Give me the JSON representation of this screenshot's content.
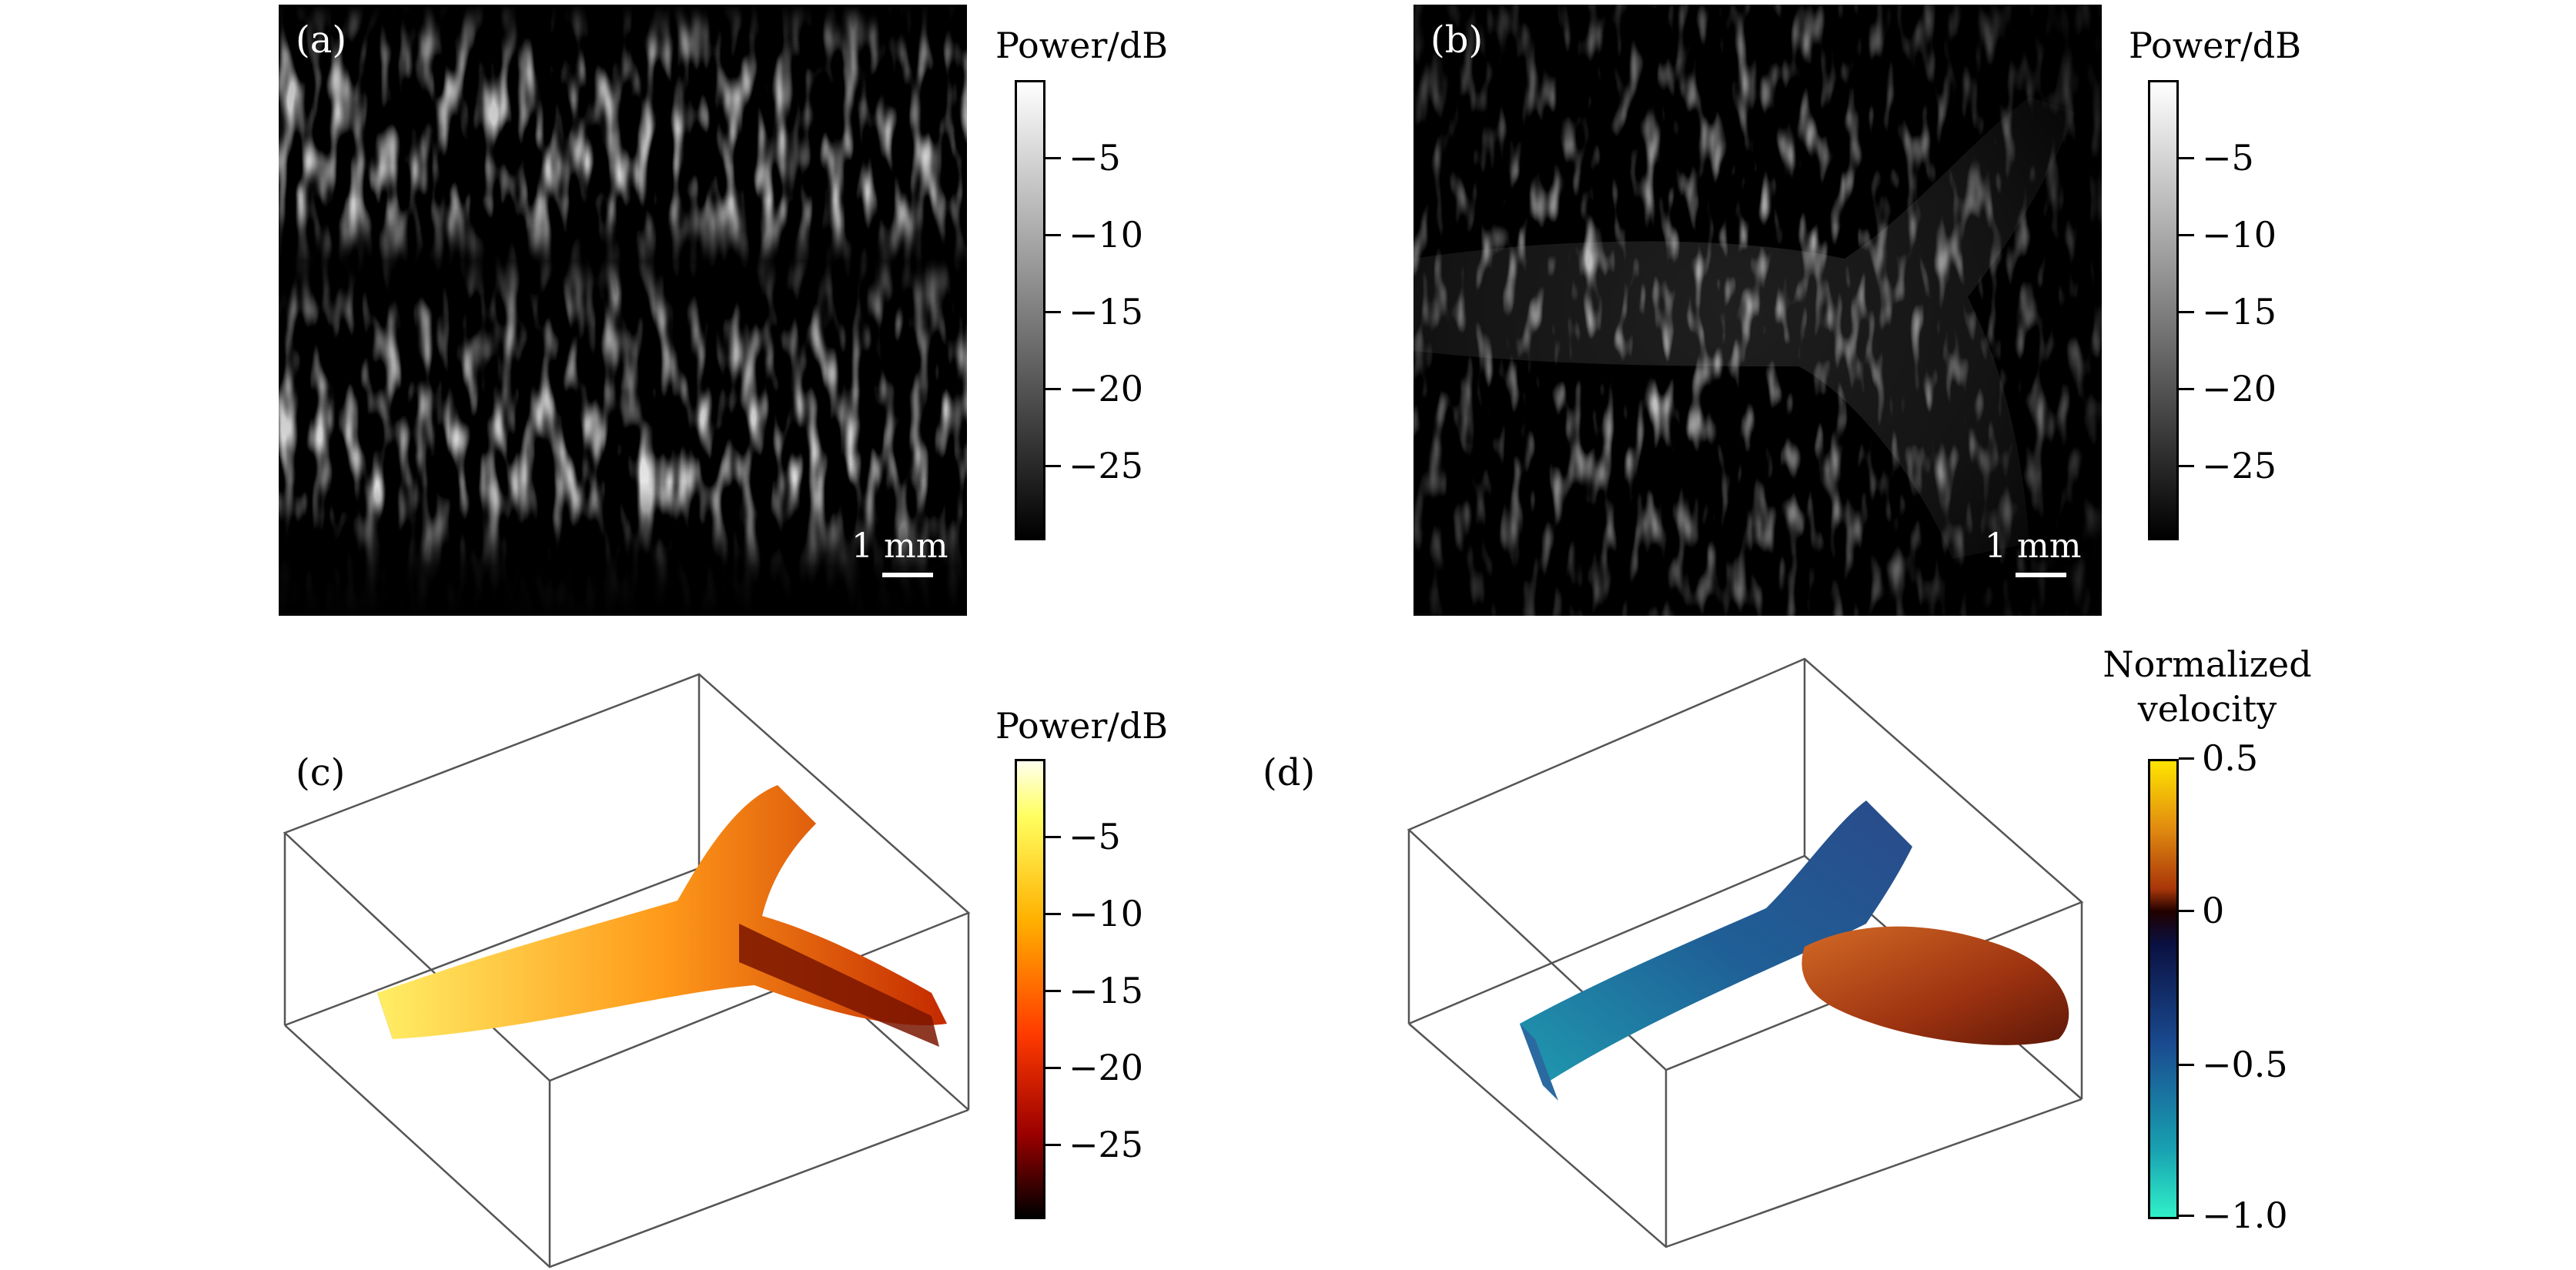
{
  "panels": {
    "a": {
      "label": "(a)",
      "scale_bar": "1 mm"
    },
    "b": {
      "label": "(b)",
      "scale_bar": "1 mm"
    },
    "c": {
      "label": "(c)"
    },
    "d": {
      "label": "(d)"
    }
  },
  "colorbars": {
    "a": {
      "title": "Power/dB",
      "ticks": [
        "−5",
        "−10",
        "−15",
        "−20",
        "−25"
      ],
      "colormap": "gray"
    },
    "b": {
      "title": "Power/dB",
      "ticks": [
        "−5",
        "−10",
        "−15",
        "−20",
        "−25"
      ],
      "colormap": "gray"
    },
    "c": {
      "title": "Power/dB",
      "ticks": [
        "−5",
        "−10",
        "−15",
        "−20",
        "−25"
      ],
      "colormap": "hot"
    },
    "d": {
      "title_line1": "Normalized",
      "title_line2": "velocity",
      "ticks": [
        "0.5",
        "0",
        "−0.5",
        "−1.0"
      ],
      "colormap": "diverging-orange-blue"
    }
  },
  "colors": {
    "background": "#ffffff",
    "image_bg": "#000000"
  }
}
